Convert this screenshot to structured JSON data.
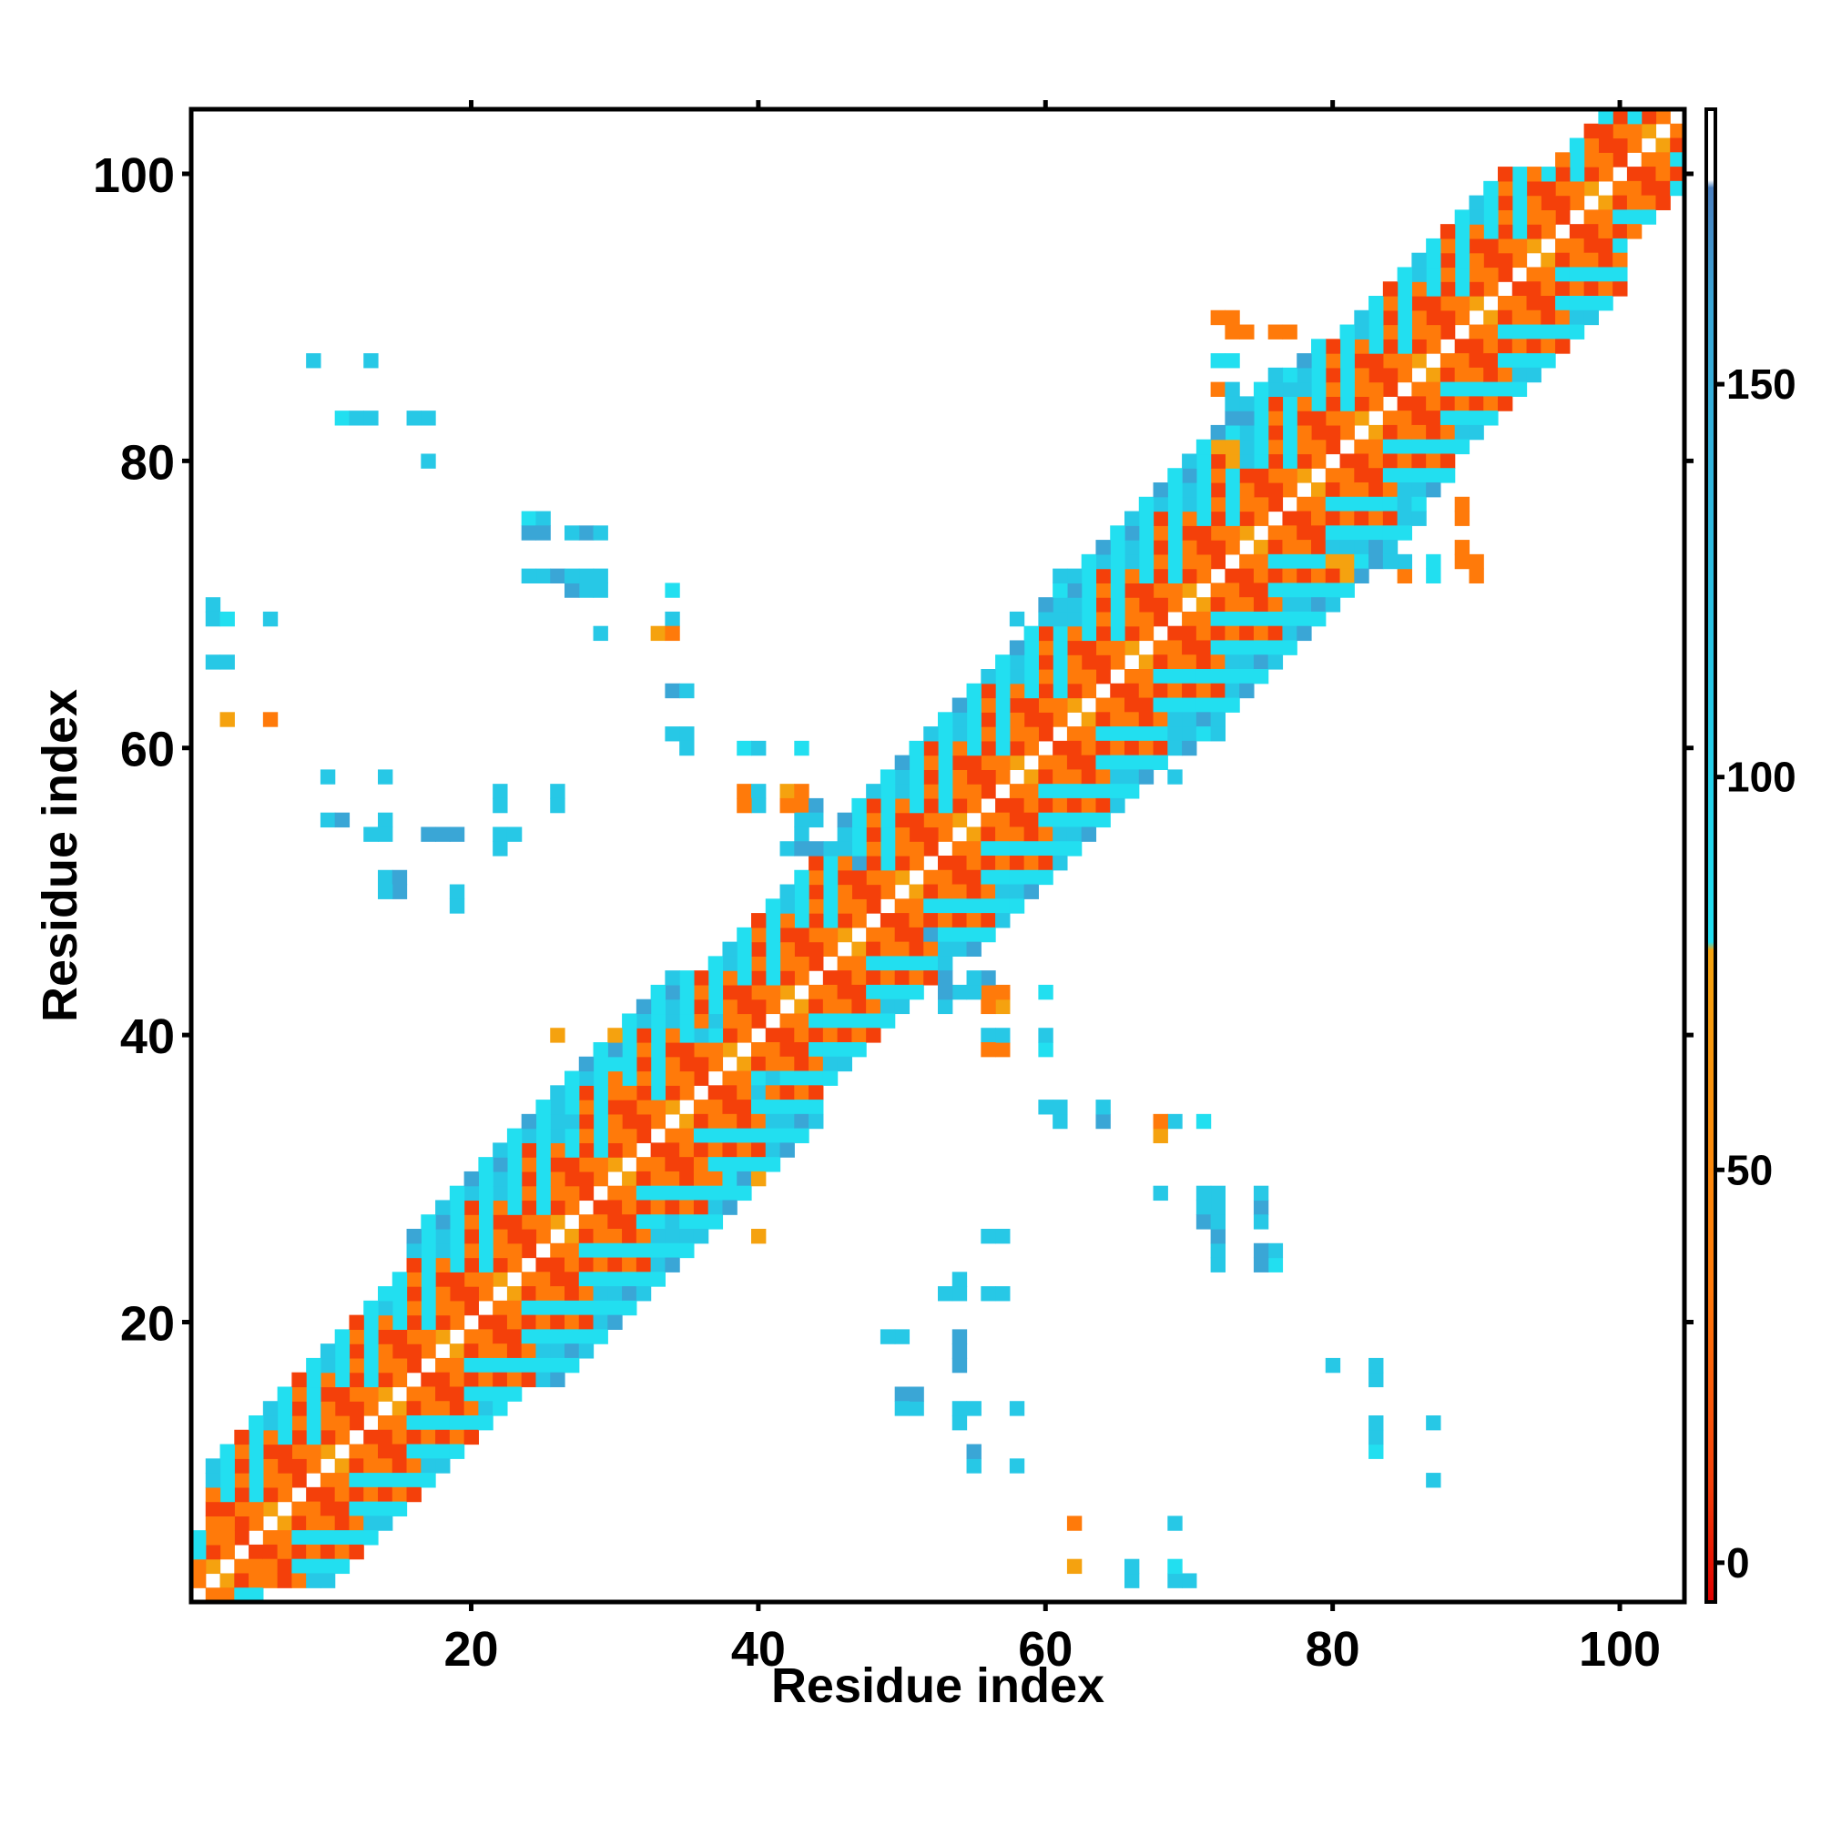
{
  "chart_data": {
    "type": "heatmap",
    "title": "",
    "xlabel": "Residue index",
    "ylabel": "Residue index",
    "xlim": [
      0.5,
      104.5
    ],
    "ylim": [
      0.5,
      104.5
    ],
    "x_ticks": [
      20,
      40,
      60,
      80,
      100
    ],
    "y_ticks": [
      20,
      40,
      60,
      80,
      100
    ],
    "grid": false,
    "colorbar": {
      "range": [
        -5,
        185
      ],
      "ticks": [
        0,
        50,
        100,
        150
      ],
      "stops": [
        {
          "value": -5,
          "color": "#e00000"
        },
        {
          "value": 10,
          "color": "#f4400a"
        },
        {
          "value": 35,
          "color": "#ff7a0a"
        },
        {
          "value": 78,
          "color": "#f4a30f"
        },
        {
          "value": 79,
          "color": "#22dff0"
        },
        {
          "value": 110,
          "color": "#27c8e6"
        },
        {
          "value": 160,
          "color": "#3aa6d6"
        },
        {
          "value": 175,
          "color": "#4a7fbf"
        },
        {
          "value": 176,
          "color": "#ffffff"
        },
        {
          "value": 185,
          "color": "#ffffff"
        }
      ]
    },
    "colors": {
      "red": "#e00000",
      "orange_red": "#f4400a",
      "orange": "#ff7a0a",
      "amber": "#f5a20f",
      "cyan": "#22dff0",
      "sky": "#27c8e6",
      "steel": "#3aa6d6",
      "blue": "#4a8fc8"
    },
    "diagonal_bands": [
      {
        "residues": [
          1,
          104
        ],
        "offset": 1,
        "pattern": [
          "orange",
          "orange_red",
          "orange",
          "amber"
        ]
      },
      {
        "residues": [
          1,
          104
        ],
        "offset": 2,
        "pattern": [
          "orange_red",
          "orange",
          "orange_red",
          "orange"
        ]
      },
      {
        "residues": [
          1,
          104
        ],
        "offset": 3,
        "pattern": [
          "cyan",
          "orange",
          "orange_red",
          "orange"
        ]
      },
      {
        "residues": [
          1,
          104
        ],
        "offset": 4,
        "pattern": [
          "orange_red",
          "cyan",
          "orange",
          "orange_red"
        ]
      },
      {
        "residues": [
          2,
          104
        ],
        "offset": 5,
        "pattern": [
          "cyan",
          "orange",
          "cyan",
          "orange_red"
        ]
      },
      {
        "residues": [
          2,
          100
        ],
        "offset": 6,
        "pattern": [
          "orange",
          "cyan",
          "orange_red",
          "cyan"
        ]
      },
      {
        "residues": [
          2,
          100
        ],
        "offset": 7,
        "pattern": [
          "cyan",
          "sky",
          "cyan",
          "orange"
        ]
      },
      {
        "residues": [
          2,
          100
        ],
        "offset": 8,
        "pattern": [
          "orange_red",
          "cyan",
          "sky",
          "cyan"
        ]
      },
      {
        "residues": [
          16,
          44
        ],
        "offset": 9,
        "pattern": [
          "cyan",
          "sky",
          "cyan",
          "steel"
        ]
      },
      {
        "residues": [
          46,
          88
        ],
        "offset": 9,
        "pattern": [
          "cyan",
          "sky",
          "cyan",
          "steel"
        ]
      },
      {
        "residues": [
          16,
          44
        ],
        "offset": 10,
        "pattern": [
          "sky",
          "cyan",
          "steel",
          "cyan"
        ]
      },
      {
        "residues": [
          60,
          86
        ],
        "offset": 10,
        "pattern": [
          "sky",
          "cyan",
          "steel",
          "cyan"
        ]
      }
    ],
    "contacts": [
      [
        9,
        87,
        "sky"
      ],
      [
        13,
        87,
        "sky"
      ],
      [
        11,
        83,
        "cyan"
      ],
      [
        12,
        83,
        "cyan"
      ],
      [
        16,
        83,
        "sky"
      ],
      [
        17,
        83,
        "sky"
      ],
      [
        17,
        80,
        "steel"
      ],
      [
        24,
        76,
        "cyan"
      ],
      [
        25,
        76,
        "sky"
      ],
      [
        24,
        75,
        "steel"
      ],
      [
        25,
        75,
        "sky"
      ],
      [
        28,
        75,
        "steel"
      ],
      [
        29,
        75,
        "sky"
      ],
      [
        25,
        72,
        "sky"
      ],
      [
        26,
        72,
        "steel"
      ],
      [
        28,
        72,
        "sky"
      ],
      [
        29,
        72,
        "sky"
      ],
      [
        28,
        71,
        "steel"
      ],
      [
        29,
        71,
        "sky"
      ],
      [
        29,
        68,
        "sky"
      ],
      [
        34,
        71,
        "cyan"
      ],
      [
        34,
        69,
        "sky"
      ],
      [
        33,
        68,
        "amber"
      ],
      [
        34,
        68,
        "orange"
      ],
      [
        2,
        70,
        "sky"
      ],
      [
        2,
        69,
        "cyan"
      ],
      [
        3,
        69,
        "cyan"
      ],
      [
        6,
        69,
        "sky"
      ],
      [
        2,
        66,
        "sky"
      ],
      [
        3,
        66,
        "sky"
      ],
      [
        3,
        62,
        "amber"
      ],
      [
        6,
        62,
        "orange"
      ],
      [
        34,
        64,
        "steel"
      ],
      [
        35,
        64,
        "steel"
      ],
      [
        34,
        61,
        "sky"
      ],
      [
        35,
        61,
        "sky"
      ],
      [
        35,
        60,
        "steel"
      ],
      [
        39,
        60,
        "cyan"
      ],
      [
        40,
        60,
        "cyan"
      ],
      [
        43,
        60,
        "sky"
      ],
      [
        10,
        58,
        "sky"
      ],
      [
        14,
        58,
        "sky"
      ],
      [
        22,
        57,
        "sky"
      ],
      [
        26,
        57,
        "sky"
      ],
      [
        39,
        57,
        "orange"
      ],
      [
        40,
        57,
        "sky"
      ],
      [
        42,
        57,
        "amber"
      ],
      [
        43,
        57,
        "orange"
      ],
      [
        43,
        56,
        "sky"
      ],
      [
        44,
        56,
        "sky"
      ],
      [
        43,
        55,
        "steel"
      ],
      [
        43,
        54,
        "sky"
      ],
      [
        10,
        55,
        "sky"
      ],
      [
        11,
        55,
        "steel"
      ],
      [
        14,
        55,
        "sky"
      ],
      [
        13,
        54,
        "steel"
      ],
      [
        14,
        54,
        "sky"
      ],
      [
        17,
        54,
        "steel"
      ],
      [
        18,
        54,
        "steel"
      ],
      [
        19,
        54,
        "sky"
      ],
      [
        22,
        54,
        "sky"
      ],
      [
        23,
        54,
        "sky"
      ],
      [
        22,
        53,
        "sky"
      ],
      [
        42,
        53,
        "sky"
      ],
      [
        43,
        53,
        "steel"
      ],
      [
        44,
        53,
        "steel"
      ],
      [
        45,
        53,
        "sky"
      ],
      [
        14,
        51,
        "sky"
      ],
      [
        15,
        51,
        "steel"
      ],
      [
        19,
        50,
        "sky"
      ],
      [
        72,
        90,
        "orange"
      ],
      [
        73,
        89,
        "orange"
      ],
      [
        76,
        89,
        "orange"
      ],
      [
        72,
        87,
        "cyan"
      ],
      [
        72,
        85,
        "orange"
      ],
      [
        73,
        85,
        "sky"
      ],
      [
        76,
        86,
        "sky"
      ],
      [
        72,
        81,
        "amber"
      ],
      [
        73,
        80,
        "orange"
      ],
      [
        85,
        77,
        "sky"
      ],
      [
        89,
        77,
        "orange"
      ],
      [
        80,
        74,
        "sky"
      ],
      [
        84,
        74,
        "sky"
      ],
      [
        87,
        73,
        "cyan"
      ],
      [
        89,
        74,
        "orange"
      ],
      [
        80,
        73,
        "amber"
      ],
      [
        81,
        73,
        "amber"
      ],
      [
        83,
        73,
        "steel"
      ],
      [
        84,
        73,
        "sky"
      ],
      [
        89,
        73,
        "orange"
      ],
      [
        90,
        73,
        "orange"
      ],
      [
        61,
        72,
        "sky"
      ],
      [
        61,
        70,
        "steel"
      ],
      [
        58,
        69,
        "sky"
      ],
      [
        69,
        61,
        "sky"
      ],
      [
        70,
        61,
        "sky"
      ],
      [
        71,
        61,
        "cyan"
      ],
      [
        69,
        58,
        "sky"
      ],
      [
        3,
        6,
        "orange"
      ],
      [
        40,
        36,
        "sky"
      ],
      [
        41,
        37,
        "sky"
      ],
      [
        26,
        40,
        "amber"
      ],
      [
        30,
        40,
        "amber"
      ],
      [
        36,
        30,
        "orange"
      ],
      [
        37,
        30,
        "orange"
      ],
      [
        36,
        31,
        "orange"
      ],
      [
        38,
        30,
        "cyan"
      ],
      [
        40,
        30,
        "amber"
      ],
      [
        34,
        27,
        "sky"
      ],
      [
        35,
        26,
        "sky"
      ],
      [
        33,
        26,
        "sky"
      ],
      [
        40,
        26,
        "amber"
      ],
      [
        14,
        22,
        "cyan"
      ],
      [
        22,
        14,
        "cyan"
      ],
      [
        52,
        47,
        "steel"
      ],
      [
        53,
        45,
        "sky"
      ],
      [
        53,
        43,
        "steel"
      ],
      [
        54,
        43,
        "sky"
      ],
      [
        55,
        43,
        "sky"
      ],
      [
        55,
        44,
        "sky"
      ],
      [
        56,
        44,
        "steel"
      ],
      [
        56,
        43,
        "orange"
      ],
      [
        56,
        42,
        "orange"
      ],
      [
        60,
        43,
        "cyan"
      ],
      [
        56,
        40,
        "sky"
      ],
      [
        56,
        39,
        "orange"
      ],
      [
        60,
        40,
        "sky"
      ],
      [
        60,
        39,
        "cyan"
      ],
      [
        60,
        35,
        "sky"
      ],
      [
        61,
        35,
        "sky"
      ],
      [
        61,
        34,
        "sky"
      ],
      [
        64,
        35,
        "sky"
      ],
      [
        64,
        34,
        "steel"
      ],
      [
        68,
        34,
        "orange"
      ],
      [
        68,
        33,
        "amber"
      ],
      [
        69,
        34,
        "sky"
      ],
      [
        71,
        34,
        "cyan"
      ],
      [
        68,
        29,
        "sky"
      ],
      [
        71,
        28,
        "sky"
      ],
      [
        72,
        28,
        "sky"
      ],
      [
        71,
        27,
        "steel"
      ],
      [
        72,
        27,
        "sky"
      ],
      [
        75,
        28,
        "steel"
      ],
      [
        75,
        27,
        "sky"
      ],
      [
        72,
        25,
        "sky"
      ],
      [
        72,
        24,
        "sky"
      ],
      [
        75,
        25,
        "steel"
      ],
      [
        76,
        25,
        "sky"
      ],
      [
        75,
        24,
        "steel"
      ],
      [
        76,
        24,
        "cyan"
      ],
      [
        56,
        26,
        "sky"
      ],
      [
        53,
        22,
        "sky"
      ],
      [
        54,
        22,
        "sky"
      ],
      [
        54,
        23,
        "sky"
      ],
      [
        56,
        22,
        "sky"
      ],
      [
        49,
        19,
        "sky"
      ],
      [
        54,
        19,
        "steel"
      ],
      [
        54,
        18,
        "steel"
      ],
      [
        54,
        17,
        "steel"
      ],
      [
        80,
        17,
        "sky"
      ],
      [
        83,
        17,
        "sky"
      ],
      [
        83,
        16,
        "sky"
      ],
      [
        50,
        15,
        "steel"
      ],
      [
        50,
        14,
        "sky"
      ],
      [
        54,
        14,
        "sky"
      ],
      [
        55,
        14,
        "sky"
      ],
      [
        58,
        14,
        "sky"
      ],
      [
        54,
        13,
        "sky"
      ],
      [
        83,
        13,
        "sky"
      ],
      [
        83,
        12,
        "sky"
      ],
      [
        87,
        13,
        "sky"
      ],
      [
        55,
        11,
        "steel"
      ],
      [
        55,
        10,
        "sky"
      ],
      [
        58,
        10,
        "sky"
      ],
      [
        87,
        9,
        "sky"
      ],
      [
        62,
        6,
        "orange"
      ],
      [
        69,
        6,
        "sky"
      ],
      [
        62,
        3,
        "amber"
      ],
      [
        66,
        3,
        "sky"
      ],
      [
        66,
        2,
        "sky"
      ],
      [
        69,
        3,
        "cyan"
      ],
      [
        69,
        2,
        "sky"
      ],
      [
        70,
        2,
        "sky"
      ]
    ]
  },
  "axes": {
    "x_tick_labels": [
      "20",
      "40",
      "60",
      "80",
      "100"
    ],
    "y_tick_labels": [
      "20",
      "40",
      "60",
      "80",
      "100"
    ],
    "colorbar_tick_labels": [
      "0",
      "50",
      "100",
      "150"
    ]
  },
  "labels": {
    "xlabel": "Residue index",
    "ylabel": "Residue index"
  }
}
